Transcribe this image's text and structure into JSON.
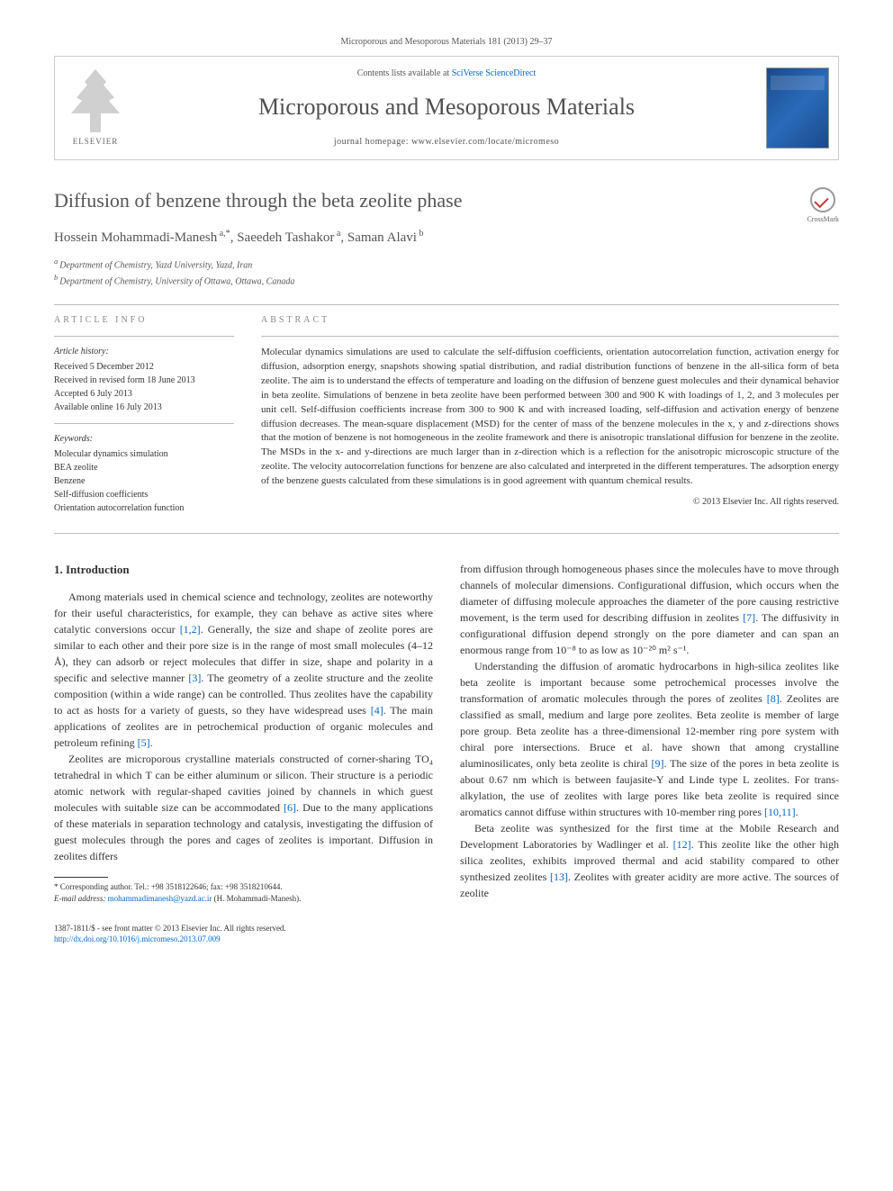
{
  "citation": "Microporous and Mesoporous Materials 181 (2013) 29–37",
  "header": {
    "contents_prefix": "Contents lists available at ",
    "contents_link": "SciVerse ScienceDirect",
    "journal_name": "Microporous and Mesoporous Materials",
    "homepage_prefix": "journal homepage: ",
    "homepage_url": "www.elsevier.com/locate/micromeso",
    "publisher": "ELSEVIER"
  },
  "title": "Diffusion of benzene through the beta zeolite phase",
  "crossmark_label": "CrossMark",
  "authors_html": "Hossein Mohammadi-Manesh",
  "author_1_sup": " a,*",
  "author_2": ", Saeedeh Tashakor",
  "author_2_sup": " a",
  "author_3": ", Saman Alavi",
  "author_3_sup": " b",
  "affiliations": {
    "a_sup": "a ",
    "a": "Department of Chemistry, Yazd University, Yazd, Iran",
    "b_sup": "b ",
    "b": "Department of Chemistry, University of Ottawa, Ottawa, Canada"
  },
  "article_info": {
    "heading": "ARTICLE INFO",
    "history_label": "Article history:",
    "received": "Received 5 December 2012",
    "revised": "Received in revised form 18 June 2013",
    "accepted": "Accepted 6 July 2013",
    "online": "Available online 16 July 2013",
    "keywords_label": "Keywords:",
    "keywords": [
      "Molecular dynamics simulation",
      "BEA zeolite",
      "Benzene",
      "Self-diffusion coefficients",
      "Orientation autocorrelation function"
    ]
  },
  "abstract": {
    "heading": "ABSTRACT",
    "text": "Molecular dynamics simulations are used to calculate the self-diffusion coefficients, orientation autocorrelation function, activation energy for diffusion, adsorption energy, snapshots showing spatial distribution, and radial distribution functions of benzene in the all-silica form of beta zeolite. The aim is to understand the effects of temperature and loading on the diffusion of benzene guest molecules and their dynamical behavior in beta zeolite. Simulations of benzene in beta zeolite have been performed between 300 and 900 K with loadings of 1, 2, and 3 molecules per unit cell. Self-diffusion coefficients increase from 300 to 900 K and with increased loading, self-diffusion and activation energy of benzene diffusion decreases. The mean-square displacement (MSD) for the center of mass of the benzene molecules in the x, y and z-directions shows that the motion of benzene is not homogeneous in the zeolite framework and there is anisotropic translational diffusion for benzene in the zeolite. The MSDs in the x- and y-directions are much larger than in z-direction which is a reflection for the anisotropic microscopic structure of the zeolite. The velocity autocorrelation functions for benzene are also calculated and interpreted in the different temperatures. The adsorption energy of the benzene guests calculated from these simulations is in good agreement with quantum chemical results.",
    "copyright": "© 2013 Elsevier Inc. All rights reserved."
  },
  "body": {
    "intro_heading": "1. Introduction",
    "para1_a": "Among materials used in chemical science and technology, zeolites are noteworthy for their useful characteristics, for example, they can behave as active sites where catalytic conversions occur ",
    "para1_ref1": "[1,2]",
    "para1_b": ". Generally, the size and shape of zeolite pores are similar to each other and their pore size is in the range of most small molecules (4–12 Å), they can adsorb or reject molecules that differ in size, shape and polarity in a specific and selective manner ",
    "para1_ref2": "[3]",
    "para1_c": ". The geometry of a zeolite structure and the zeolite composition (within a wide range) can be controlled. Thus zeolites have the capability to act as hosts for a variety of guests, so they have widespread uses ",
    "para1_ref3": "[4]",
    "para1_d": ". The main applications of zeolites are in petrochemical production of organic molecules and petroleum refining ",
    "para1_ref4": "[5]",
    "para1_e": ".",
    "para2_a": "Zeolites are microporous crystalline materials constructed of corner-sharing TO₄ tetrahedral in which T can be either aluminum or silicon. Their structure is a periodic atomic network with regular-shaped cavities joined by channels in which guest molecules with suitable size can be accommodated ",
    "para2_ref1": "[6]",
    "para2_b": ". Due to the many applications of these materials in separation technology and catalysis, investigating the diffusion of guest molecules through the pores and cages of zeolites is important. Diffusion in zeolites differs",
    "para3_a": "from diffusion through homogeneous phases since the molecules have to move through channels of molecular dimensions. Configurational diffusion, which occurs when the diameter of diffusing molecule approaches the diameter of the pore causing restrictive movement, is the term used for describing diffusion in zeolites ",
    "para3_ref1": "[7]",
    "para3_b": ". The diffusivity in configurational diffusion depend strongly on the pore diameter and can span an enormous range from 10⁻⁸ to as low as 10⁻²⁰ m² s⁻¹.",
    "para4_a": "Understanding the diffusion of aromatic hydrocarbons in high-silica zeolites like beta zeolite is important because some petrochemical processes involve the transformation of aromatic molecules through the pores of zeolites ",
    "para4_ref1": "[8]",
    "para4_b": ". Zeolites are classified as small, medium and large pore zeolites. Beta zeolite is member of large pore group. Beta zeolite has a three-dimensional 12-member ring pore system with chiral pore intersections. Bruce et al. have shown that among crystalline aluminosilicates, only beta zeolite is chiral ",
    "para4_ref2": "[9]",
    "para4_c": ". The size of the pores in beta zeolite is about 0.67 nm which is between faujasite-Y and Linde type L zeolites. For trans-alkylation, the use of zeolites with large pores like beta zeolite is required since aromatics cannot diffuse within structures with 10-member ring pores ",
    "para4_ref3": "[10,11]",
    "para4_d": ".",
    "para5_a": "Beta zeolite was synthesized for the first time at the Mobile Research and Development Laboratories by Wadlinger et al. ",
    "para5_ref1": "[12]",
    "para5_b": ". This zeolite like the other high silica zeolites, exhibits improved thermal and acid stability compared to other synthesized zeolites ",
    "para5_ref2": "[13]",
    "para5_c": ". Zeolites with greater acidity are more active. The sources of zeolite"
  },
  "footnote": {
    "corr_label": "* Corresponding author. Tel.: +98 3518122646; fax: +98 3518210644.",
    "email_label": "E-mail address: ",
    "email": "mohammadimanesh@yazd.ac.ir",
    "email_suffix": " (H. Mohammadi-Manesh)."
  },
  "footer": {
    "issn": "1387-1811/$ - see front matter © 2013 Elsevier Inc. All rights reserved.",
    "doi": "http://dx.doi.org/10.1016/j.micromeso.2013.07.009"
  },
  "colors": {
    "link": "#0066cc",
    "text": "#333333",
    "heading": "#555555",
    "border": "#cccccc"
  }
}
